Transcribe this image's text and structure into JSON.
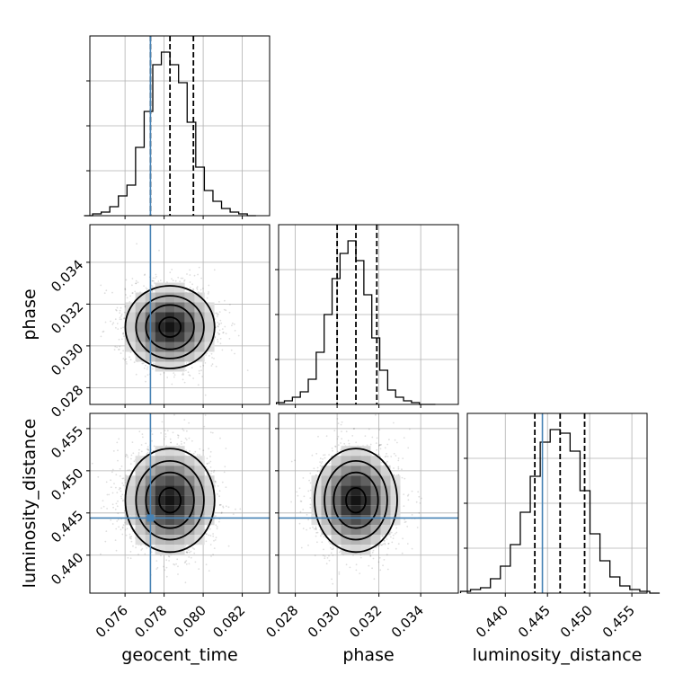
{
  "chart_data": {
    "type": "corner",
    "title": "",
    "parameters": [
      {
        "name": "geocent_time",
        "label": "geocent_time",
        "range": [
          0.0742,
          0.0834
        ],
        "ticks": [
          0.076,
          0.078,
          0.08,
          0.082
        ],
        "tick_labels": [
          "0.076",
          "0.078",
          "0.080",
          "0.082"
        ],
        "truth": 0.0773,
        "quantiles": [
          0.0773,
          0.0783,
          0.0795
        ]
      },
      {
        "name": "phase",
        "label": "phase",
        "range": [
          0.0272,
          0.0358
        ],
        "ticks": [
          0.028,
          0.03,
          0.032,
          0.034
        ],
        "tick_labels": [
          "0.028",
          "0.030",
          "0.032",
          "0.034"
        ],
        "truth": null,
        "quantiles": [
          0.03,
          0.0309,
          0.0319
        ]
      },
      {
        "name": "luminosity_distance",
        "label": "luminosity_distance",
        "range": [
          0.4355,
          0.4568
        ],
        "ticks": [
          0.44,
          0.445,
          0.45,
          0.455
        ],
        "tick_labels": [
          "0.440",
          "0.445",
          "0.450",
          "0.455"
        ],
        "truth": 0.4444,
        "quantiles": [
          0.4435,
          0.4465,
          0.4494
        ]
      }
    ],
    "histograms": [
      [
        0,
        1,
        2,
        5,
        11,
        17,
        38,
        58,
        84,
        91,
        84,
        74,
        52,
        27,
        14,
        8,
        4,
        2,
        1,
        0
      ],
      [
        1,
        2,
        4,
        7,
        14,
        29,
        50,
        70,
        84,
        91,
        80,
        61,
        37,
        19,
        8,
        4,
        2,
        1,
        0,
        0
      ],
      [
        1,
        2,
        3,
        8,
        15,
        27,
        45,
        65,
        84,
        91,
        89,
        79,
        57,
        33,
        18,
        9,
        4,
        2,
        1,
        0
      ]
    ],
    "truth_color": "#4682b4",
    "grid": true,
    "legend": "none"
  }
}
